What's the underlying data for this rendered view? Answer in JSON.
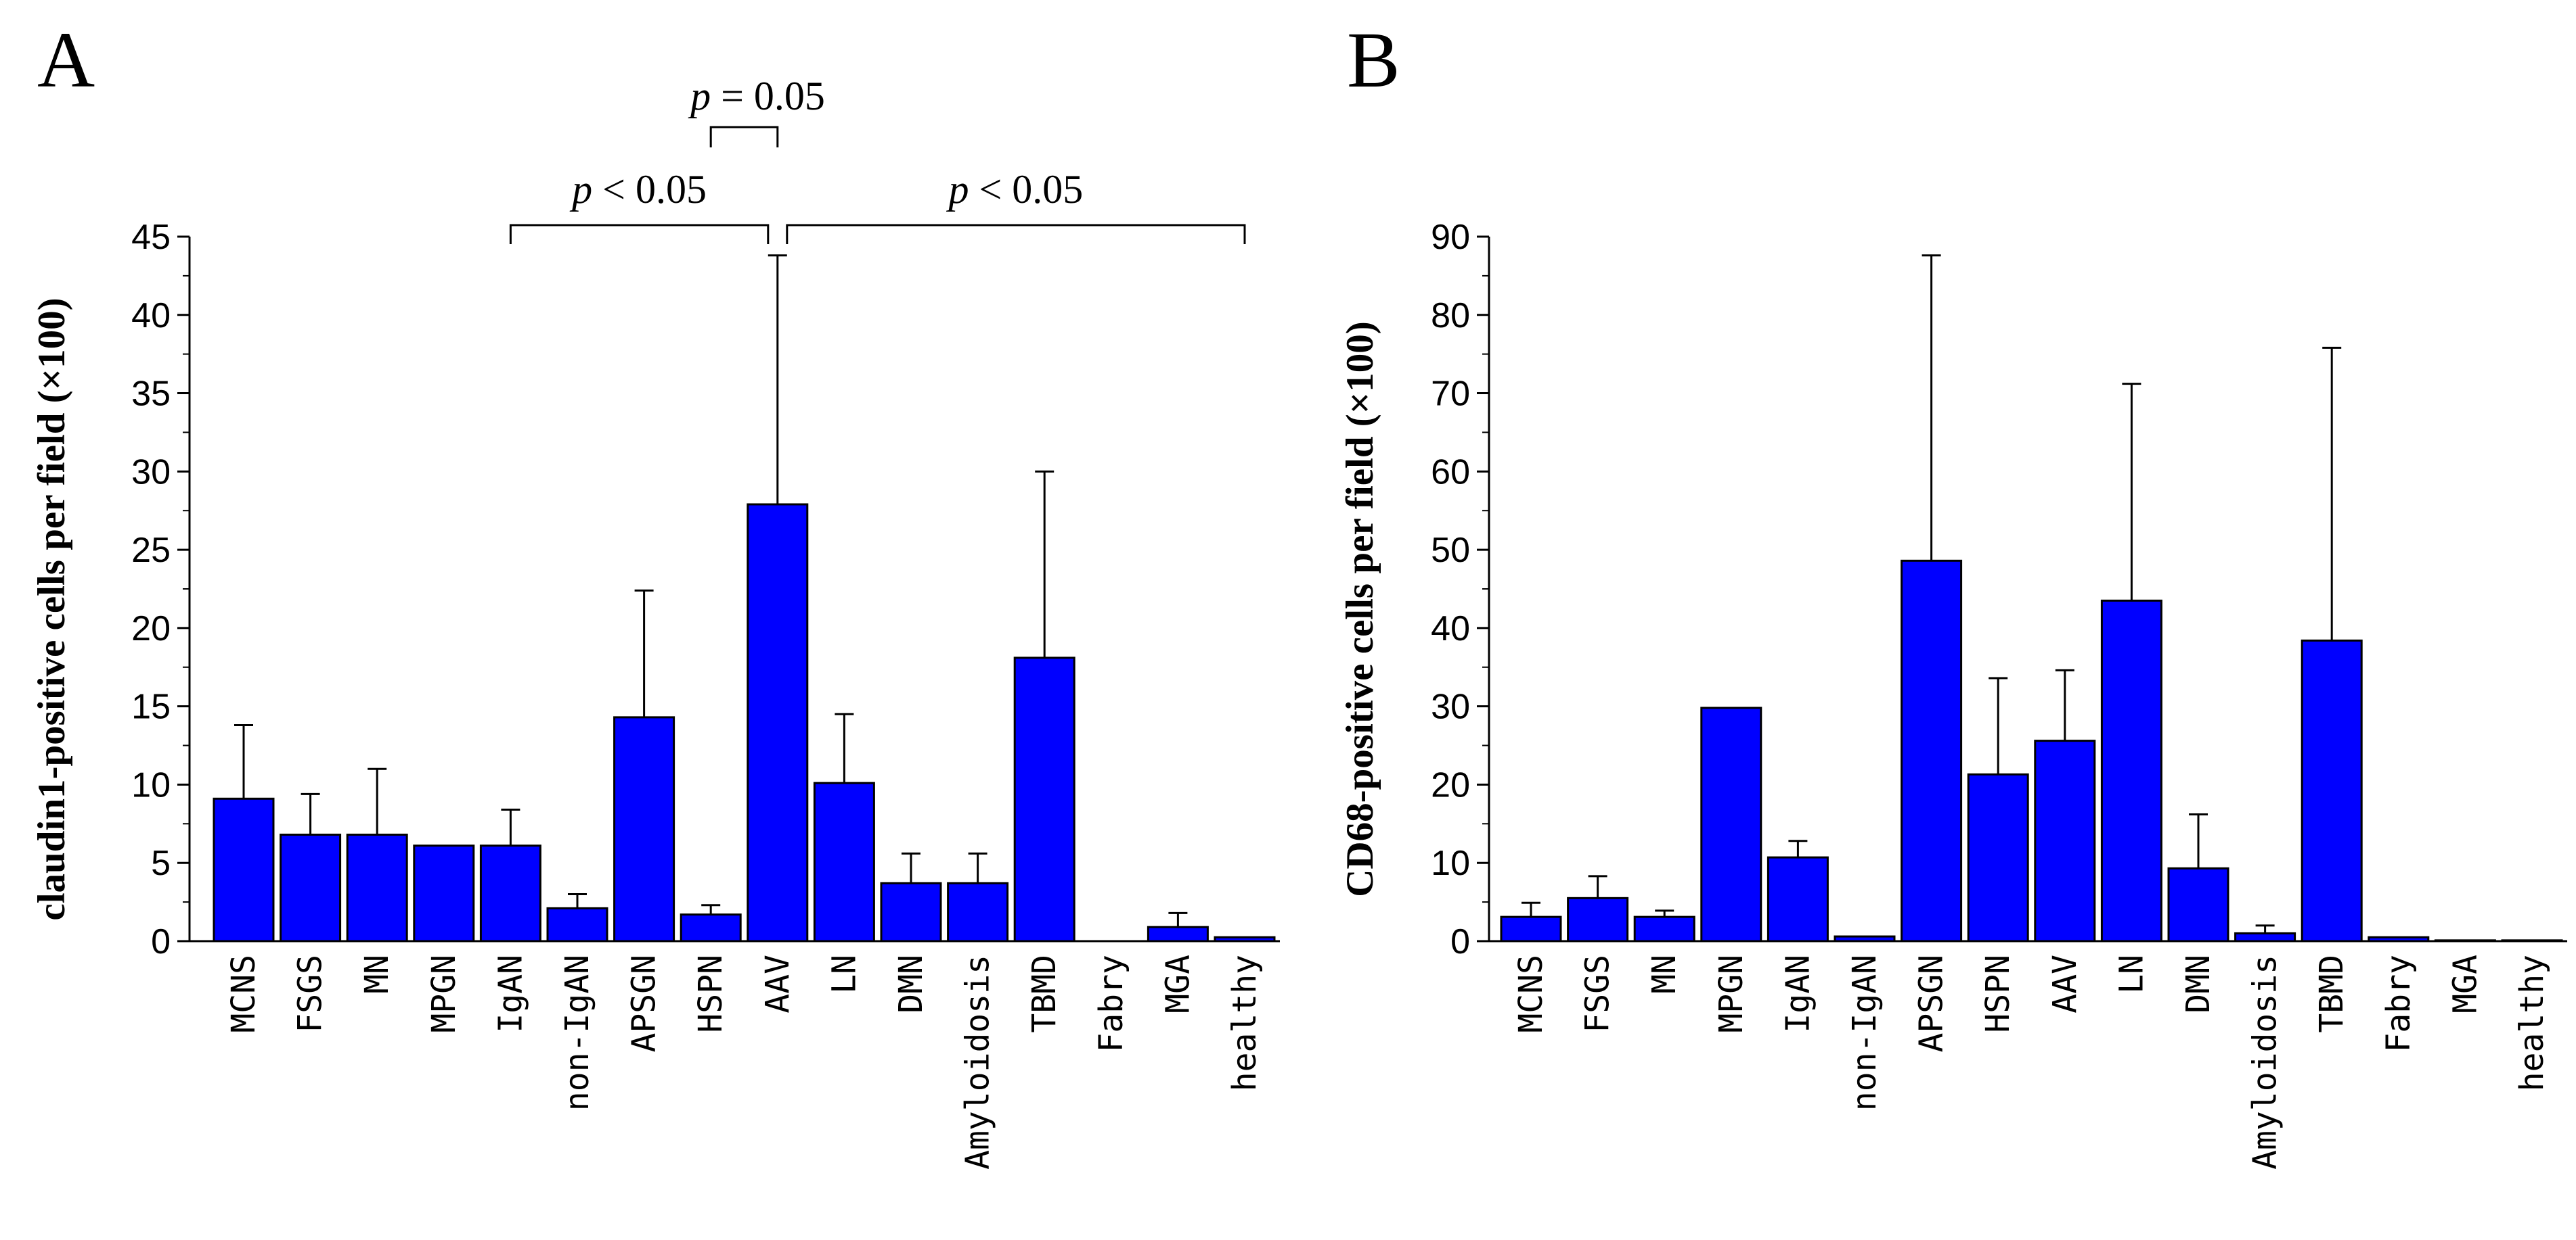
{
  "chart_data": [
    {
      "type": "bar",
      "panel": "A",
      "ylabel": "claudin1-positive cells per field (×100)",
      "ylim": [
        0,
        45
      ],
      "yticks": [
        0,
        5,
        10,
        15,
        20,
        25,
        30,
        35,
        40,
        45
      ],
      "categories": [
        "MCNS",
        "FSGS",
        "MN",
        "MPGN",
        "IgAN",
        "non-IgAN",
        "APSGN",
        "HSPN",
        "AAV",
        "LN",
        "DMN",
        "Amyloidosis",
        "TBMD",
        "Fabry",
        "MGA",
        "healthy"
      ],
      "values": [
        9.1,
        6.8,
        6.8,
        6.1,
        6.1,
        2.1,
        14.3,
        1.7,
        27.9,
        10.1,
        3.7,
        3.7,
        18.1,
        0.0,
        0.9,
        0.25
      ],
      "error_upper": [
        13.8,
        9.4,
        11.0,
        null,
        8.4,
        3.0,
        22.4,
        2.3,
        43.8,
        14.5,
        5.6,
        5.6,
        30.0,
        null,
        1.8,
        null
      ],
      "color": "#0000ff",
      "annotations": [
        {
          "text_prefix": "p",
          "text_value": " = 0.05",
          "from": "HSPN",
          "to": "AAV"
        },
        {
          "text_prefix": "p",
          "text_value": " < 0.05",
          "from": "IgAN",
          "to": "AAV"
        },
        {
          "text_prefix": "p",
          "text_value": " < 0.05",
          "from": "AAV",
          "to": "healthy"
        }
      ]
    },
    {
      "type": "bar",
      "panel": "B",
      "ylabel": "CD68-positive cells per field (×100)",
      "ylim": [
        0,
        90
      ],
      "yticks": [
        0,
        10,
        20,
        30,
        40,
        50,
        60,
        70,
        80,
        90
      ],
      "categories": [
        "MCNS",
        "FSGS",
        "MN",
        "MPGN",
        "IgAN",
        "non-IgAN",
        "APSGN",
        "HSPN",
        "AAV",
        "LN",
        "DMN",
        "Amyloidosis",
        "TBMD",
        "Fabry",
        "MGA",
        "healthy"
      ],
      "values": [
        3.1,
        5.5,
        3.1,
        29.8,
        10.7,
        0.6,
        48.6,
        21.3,
        25.6,
        43.5,
        9.3,
        1.0,
        38.4,
        0.5,
        0.1,
        0.1
      ],
      "error_upper": [
        4.9,
        8.3,
        3.9,
        null,
        12.8,
        null,
        87.6,
        33.6,
        34.6,
        71.2,
        16.2,
        2.0,
        75.8,
        null,
        null,
        null
      ],
      "color": "#0000ff"
    }
  ]
}
